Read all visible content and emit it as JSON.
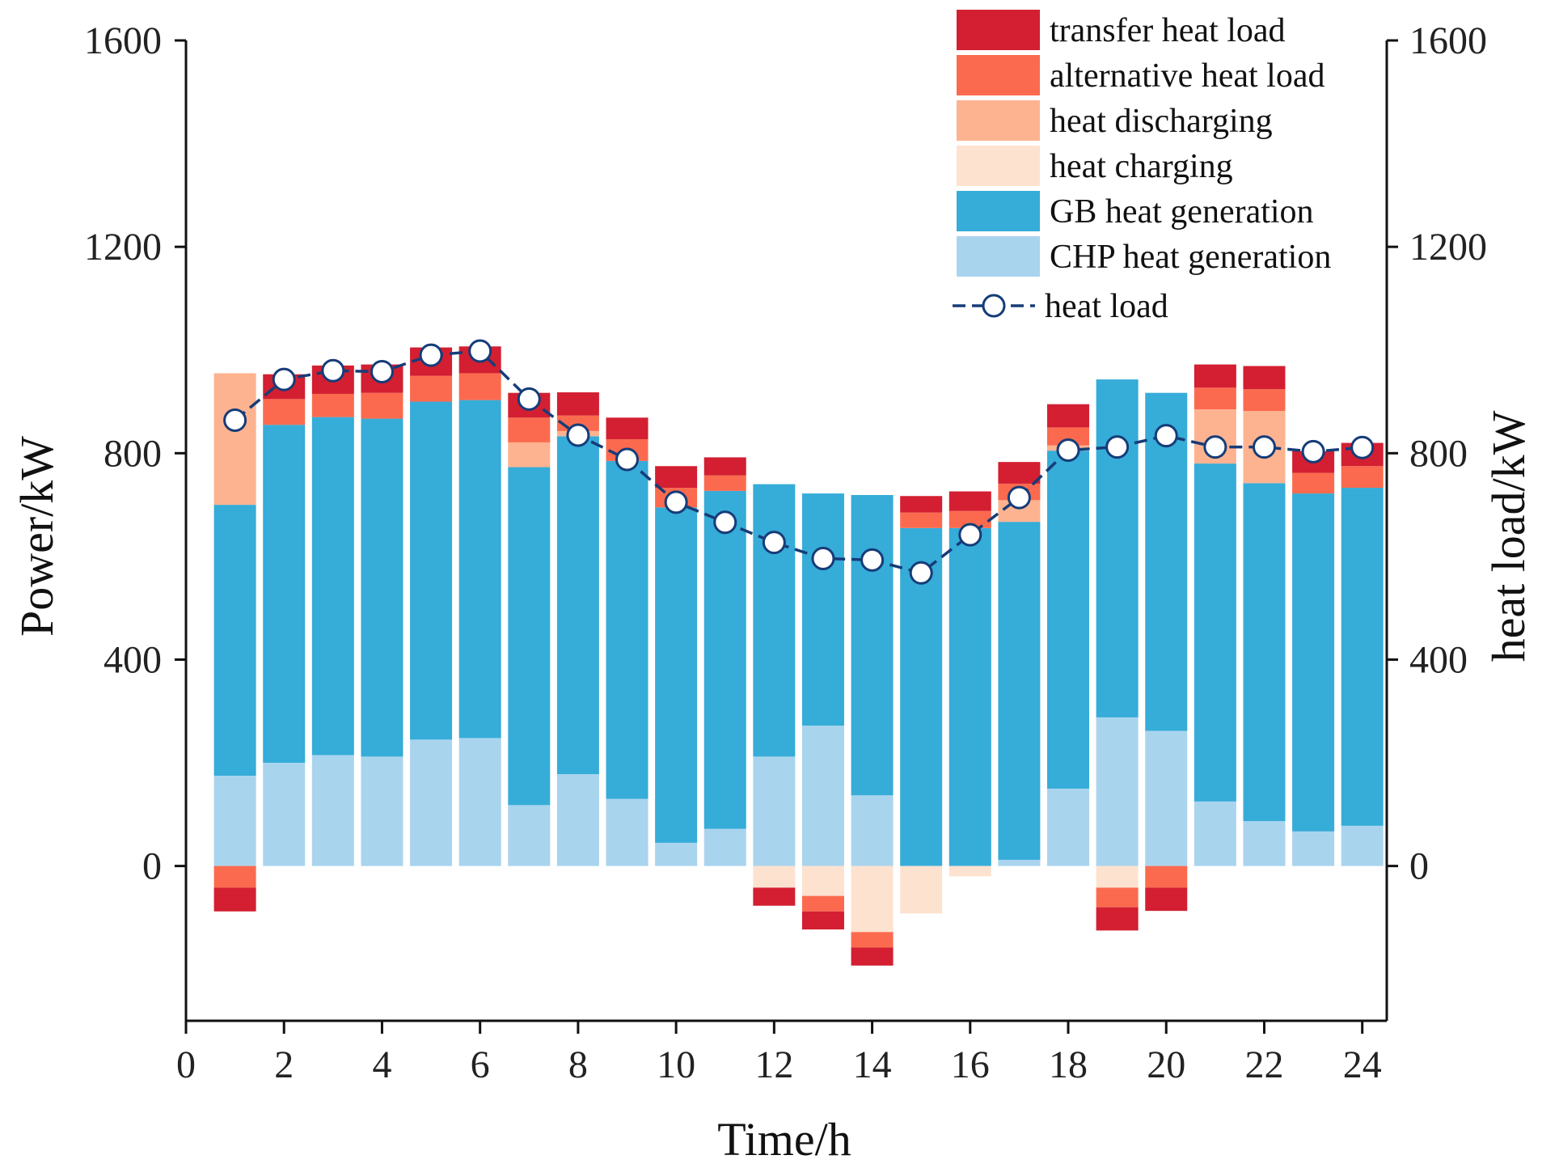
{
  "chart_data": {
    "type": "bar",
    "stacked": true,
    "xlabel": "Time/h",
    "ylabel_left": "Power/kW",
    "ylabel_right": "heat load/kW",
    "xlim": [
      0,
      24.5
    ],
    "ylim": [
      -300,
      1600
    ],
    "xticks": [
      0,
      2,
      4,
      6,
      8,
      10,
      12,
      14,
      16,
      18,
      20,
      22,
      24
    ],
    "yticks": [
      0,
      400,
      800,
      1200,
      1600
    ],
    "legend_position": "top-right",
    "categories": [
      1,
      2,
      3,
      4,
      5,
      6,
      7,
      8,
      9,
      10,
      11,
      12,
      13,
      14,
      15,
      16,
      17,
      18,
      19,
      20,
      21,
      22,
      23,
      24
    ],
    "series": [
      {
        "name": "CHP heat generation",
        "color": "#a9d4ee",
        "values": [
          175,
          200,
          215,
          212,
          245,
          248,
          118,
          178,
          130,
          45,
          72,
          212,
          272,
          137,
          0,
          0,
          12,
          150,
          288,
          262,
          125,
          87,
          67,
          78
        ]
      },
      {
        "name": "GB heat generation",
        "color": "#36acd8",
        "values": [
          525,
          655,
          655,
          655,
          655,
          655,
          655,
          655,
          655,
          650,
          655,
          528,
          450,
          582,
          655,
          655,
          655,
          655,
          655,
          655,
          655,
          655,
          655,
          655
        ]
      },
      {
        "name": "heat charging",
        "color": "#fde2d0",
        "values": [
          0,
          0,
          0,
          0,
          0,
          0,
          0,
          0,
          0,
          0,
          0,
          -42,
          -58,
          -128,
          -92,
          -20,
          0,
          0,
          -42,
          0,
          0,
          0,
          0,
          0
        ]
      },
      {
        "name": "heat discharging",
        "color": "#fdb390",
        "values": [
          255,
          0,
          0,
          0,
          0,
          0,
          48,
          10,
          0,
          0,
          0,
          0,
          0,
          0,
          0,
          0,
          42,
          10,
          0,
          0,
          105,
          140,
          0,
          0
        ]
      },
      {
        "name": "alternative heat load",
        "color": "#fb6a4e",
        "values": [
          -42,
          50,
          45,
          50,
          50,
          52,
          48,
          30,
          42,
          38,
          30,
          0,
          -30,
          -30,
          30,
          33,
          32,
          35,
          -38,
          -42,
          42,
          42,
          40,
          42
        ]
      },
      {
        "name": "transfer heat load",
        "color": "#d31f31",
        "values": [
          -46,
          48,
          55,
          55,
          55,
          52,
          48,
          45,
          42,
          42,
          35,
          -35,
          -35,
          -35,
          32,
          38,
          42,
          45,
          -45,
          -45,
          45,
          45,
          42,
          45
        ]
      }
    ],
    "line": {
      "name": "heat load",
      "color": "#163c78",
      "values": [
        864,
        943,
        960,
        958,
        990,
        998,
        905,
        835,
        788,
        705,
        666,
        627,
        596,
        593,
        568,
        642,
        714,
        806,
        812,
        834,
        812,
        812,
        803,
        811
      ]
    }
  }
}
